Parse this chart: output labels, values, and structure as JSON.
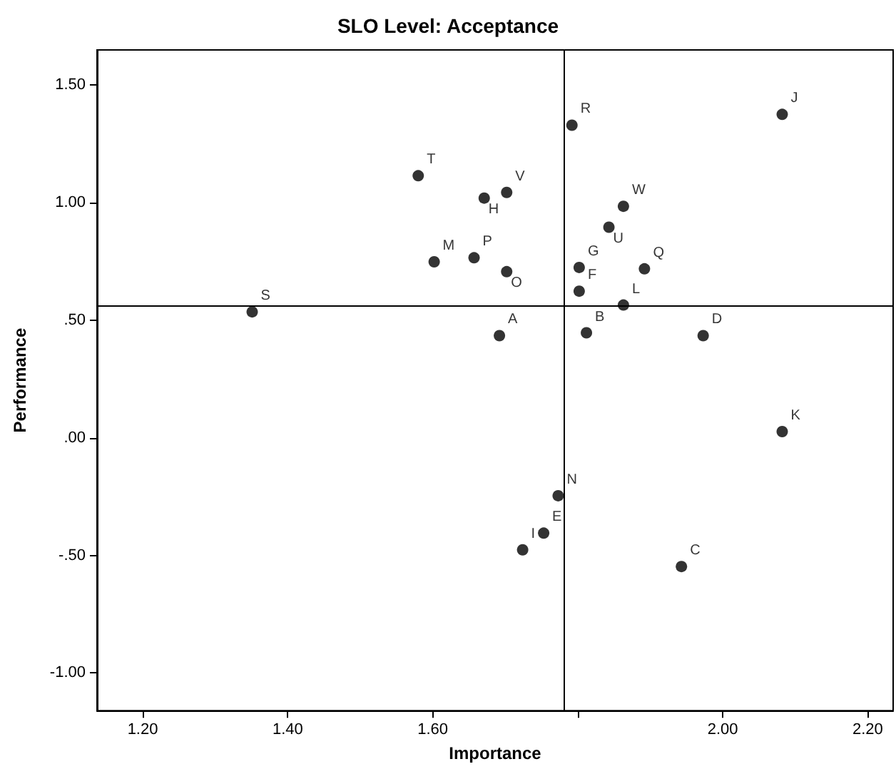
{
  "chart_data": {
    "type": "scatter",
    "title": "SLO Level: Acceptance",
    "xlabel": "Importance",
    "ylabel": "Performance",
    "x": [
      1.792,
      2.082,
      1.58,
      1.702,
      1.671,
      1.863,
      1.843,
      1.602,
      1.657,
      1.702,
      1.802,
      1.892,
      1.802,
      1.863,
      1.351,
      1.692,
      1.812,
      1.973,
      2.082,
      1.773,
      1.753,
      1.724,
      1.943
    ],
    "values": [
      1.33,
      1.376,
      1.115,
      1.044,
      1.02,
      0.985,
      0.896,
      0.749,
      0.766,
      0.707,
      0.725,
      0.719,
      0.624,
      0.565,
      0.536,
      0.435,
      0.447,
      0.435,
      0.027,
      -0.246,
      -0.405,
      -0.476,
      -0.547
    ],
    "value_labels": [
      "R",
      "J",
      "T",
      "V",
      "H",
      "W",
      "U",
      "M",
      "P",
      "O",
      "G",
      "Q",
      "F",
      "L",
      "S",
      "A",
      "B",
      "D",
      "K",
      "N",
      "E",
      "I",
      "C"
    ],
    "color": "#000000",
    "marker": "circle",
    "grid": false,
    "xlim": [
      1.137,
      2.235
    ],
    "xticks": [
      {
        "value": 1.2,
        "label": "1.20"
      },
      {
        "value": 1.4,
        "label": "1.40"
      },
      {
        "value": 1.6,
        "label": "1.60"
      },
      {
        "value": 1.8,
        "label": null
      },
      {
        "value": 2.0,
        "label": "2.00"
      },
      {
        "value": 2.2,
        "label": "2.20"
      }
    ],
    "ylim": [
      -1.16,
      1.65
    ],
    "yticks": [
      {
        "value": -1.0,
        "label": "-1.00"
      },
      {
        "value": -0.5,
        "label": "-.50"
      },
      {
        "value": 0,
        "label": ".00"
      },
      {
        "value": 0.5,
        "label": ".50"
      },
      {
        "value": 1.0,
        "label": "1.00"
      },
      {
        "value": 1.5,
        "label": "1.50"
      }
    ],
    "ref_lines": [
      {
        "axis": "x",
        "value": 1.78
      },
      {
        "axis": "y",
        "value": 0.56
      }
    ]
  }
}
